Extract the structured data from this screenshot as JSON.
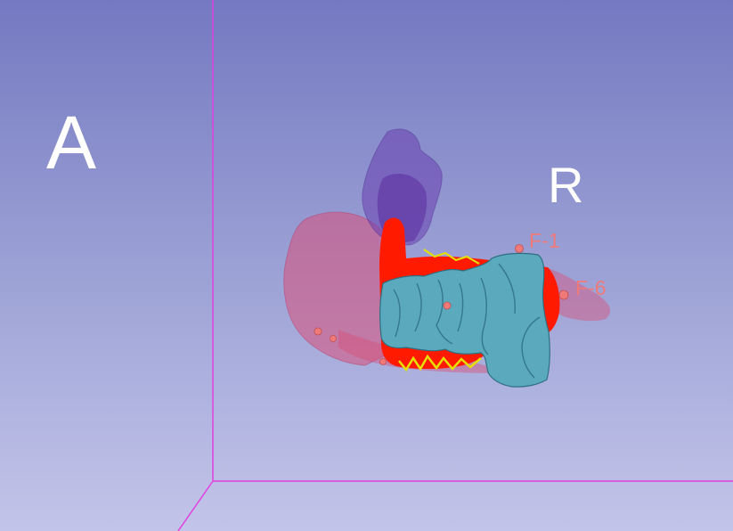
{
  "viewer": {
    "orientation_labels": {
      "left": "A",
      "right": "R"
    },
    "fiducials": [
      {
        "label": "F-1"
      },
      {
        "label": "F-6"
      }
    ]
  },
  "colors": {
    "background_top": "#7479c1",
    "background_bottom": "#c3c4e9",
    "bounding_box": "#e040e0",
    "segment_pink": "#d8507a",
    "segment_purple": "#6a3fb0",
    "segment_red": "#ff1a00",
    "segment_teal": "#5aa9bd",
    "segment_yellow": "#e6e000",
    "fiducial": "#f07a7a"
  }
}
